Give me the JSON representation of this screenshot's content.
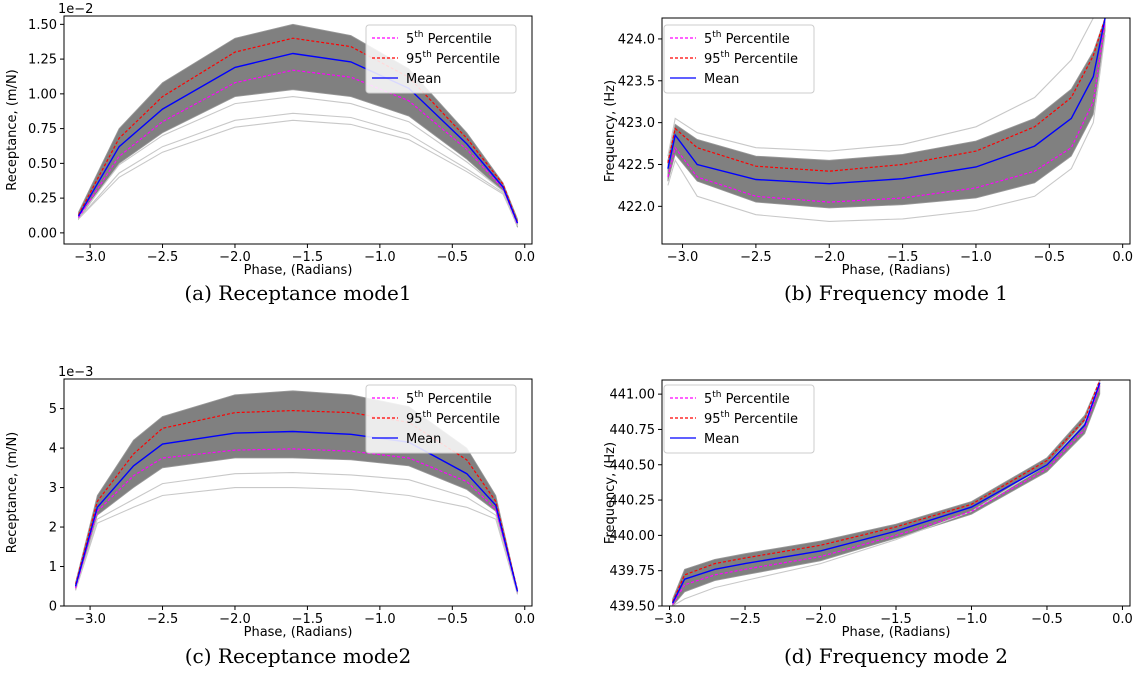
{
  "chart_data": [
    {
      "id": "a",
      "type": "line",
      "caption": "(a) Receptance mode1",
      "xlabel": "Phase, (Radians)",
      "ylabel": "Receptance, (m/N)",
      "offset_text": "1e−2",
      "xlim": [
        -3.18,
        0.05
      ],
      "ylim": [
        -0.08,
        1.56
      ],
      "xticks": [
        -3.0,
        -2.5,
        -2.0,
        -1.5,
        -1.0,
        -0.5,
        0.0
      ],
      "xtick_labels": [
        "−3.0",
        "−2.5",
        "−2.0",
        "−1.5",
        "−1.0",
        "−0.5",
        "0.0"
      ],
      "yticks": [
        0.0,
        0.25,
        0.5,
        0.75,
        1.0,
        1.25,
        1.5
      ],
      "ytick_labels": [
        "0.00",
        "0.25",
        "0.50",
        "0.75",
        "1.00",
        "1.25",
        "1.50"
      ],
      "band": {
        "x": [
          -3.08,
          -2.8,
          -2.5,
          -2.0,
          -1.6,
          -1.2,
          -0.8,
          -0.4,
          -0.15,
          -0.05
        ],
        "upper": [
          0.15,
          0.75,
          1.08,
          1.4,
          1.5,
          1.42,
          1.18,
          0.72,
          0.36,
          0.1
        ],
        "lower": [
          0.1,
          0.5,
          0.72,
          0.98,
          1.03,
          0.98,
          0.84,
          0.53,
          0.3,
          0.04
        ]
      },
      "outliers": [
        {
          "x": [
            -3.08,
            -2.8,
            -2.5,
            -2.0,
            -1.6,
            -1.2,
            -0.8,
            -0.4,
            -0.15,
            -0.05
          ],
          "y": [
            0.1,
            0.4,
            0.58,
            0.76,
            0.81,
            0.78,
            0.67,
            0.44,
            0.28,
            0.05
          ]
        },
        {
          "x": [
            -3.08,
            -2.8,
            -2.5,
            -2.0,
            -1.6,
            -1.2,
            -0.8,
            -0.4,
            -0.15,
            -0.05
          ],
          "y": [
            0.1,
            0.43,
            0.62,
            0.81,
            0.86,
            0.83,
            0.71,
            0.46,
            0.29,
            0.05
          ]
        },
        {
          "x": [
            -3.08,
            -2.8,
            -2.5,
            -2.0,
            -1.6,
            -1.2,
            -0.8,
            -0.4,
            -0.15,
            -0.05
          ],
          "y": [
            0.11,
            0.49,
            0.7,
            0.93,
            0.98,
            0.93,
            0.8,
            0.51,
            0.3,
            0.05
          ]
        }
      ],
      "series": [
        {
          "name": "5th Percentile",
          "color": "#ff00ff",
          "dash": "3,2",
          "x": [
            -3.08,
            -2.8,
            -2.5,
            -2.0,
            -1.6,
            -1.2,
            -0.8,
            -0.4,
            -0.15,
            -0.05
          ],
          "y": [
            0.11,
            0.55,
            0.8,
            1.08,
            1.17,
            1.12,
            0.95,
            0.6,
            0.32,
            0.06
          ]
        },
        {
          "name": "95th Percentile",
          "color": "#ff0000",
          "dash": "3,2",
          "x": [
            -3.08,
            -2.8,
            -2.5,
            -2.0,
            -1.6,
            -1.2,
            -0.8,
            -0.4,
            -0.15,
            -0.05
          ],
          "y": [
            0.13,
            0.68,
            0.98,
            1.3,
            1.4,
            1.34,
            1.12,
            0.68,
            0.35,
            0.08
          ]
        },
        {
          "name": "Mean",
          "color": "#0000ff",
          "dash": "",
          "x": [
            -3.08,
            -2.8,
            -2.5,
            -2.0,
            -1.6,
            -1.2,
            -0.8,
            -0.4,
            -0.15,
            -0.05
          ],
          "y": [
            0.12,
            0.62,
            0.89,
            1.19,
            1.29,
            1.23,
            1.04,
            0.64,
            0.33,
            0.07
          ]
        }
      ]
    },
    {
      "id": "b",
      "type": "line",
      "caption": "(b) Frequency mode 1",
      "xlabel": "Phase, (Radians)",
      "ylabel": "Frequency, (Hz)",
      "offset_text": "",
      "xlim": [
        -3.14,
        0.05
      ],
      "ylim": [
        421.55,
        424.25
      ],
      "xticks": [
        -3.0,
        -2.5,
        -2.0,
        -1.5,
        -1.0,
        -0.5,
        0.0
      ],
      "xtick_labels": [
        "−3.0",
        "−2.5",
        "−2.0",
        "−1.5",
        "−1.0",
        "−0.5",
        "0.0"
      ],
      "yticks": [
        422.0,
        422.5,
        423.0,
        423.5,
        424.0
      ],
      "ytick_labels": [
        "422.0",
        "422.5",
        "423.0",
        "423.5",
        "424.0"
      ],
      "band": {
        "x": [
          -3.1,
          -3.05,
          -2.9,
          -2.5,
          -2.0,
          -1.5,
          -1.0,
          -0.6,
          -0.35,
          -0.2,
          -0.12
        ],
        "upper": [
          422.55,
          422.98,
          422.8,
          422.6,
          422.55,
          422.62,
          422.78,
          423.05,
          423.4,
          423.85,
          424.25
        ],
        "lower": [
          422.3,
          422.62,
          422.3,
          422.05,
          421.98,
          422.02,
          422.1,
          422.28,
          422.6,
          423.1,
          424.1
        ]
      },
      "outliers": [
        {
          "x": [
            -3.1,
            -3.05,
            -2.9,
            -2.5,
            -2.0,
            -1.5,
            -1.0,
            -0.6,
            -0.35,
            -0.2,
            -0.12
          ],
          "y": [
            422.25,
            422.55,
            422.12,
            421.9,
            421.82,
            421.85,
            421.95,
            422.12,
            422.45,
            423.0,
            424.05
          ]
        },
        {
          "x": [
            -3.1,
            -3.05,
            -2.9,
            -2.5,
            -2.0,
            -1.5,
            -1.0,
            -0.6,
            -0.35,
            -0.2,
            -0.12
          ],
          "y": [
            422.6,
            423.05,
            422.88,
            422.7,
            422.66,
            422.74,
            422.95,
            423.3,
            423.75,
            424.25,
            424.25
          ]
        }
      ],
      "series": [
        {
          "name": "5th Percentile",
          "color": "#ff00ff",
          "dash": "3,2",
          "x": [
            -3.1,
            -3.05,
            -2.9,
            -2.5,
            -2.0,
            -1.5,
            -1.0,
            -0.6,
            -0.35,
            -0.2,
            -0.12
          ],
          "y": [
            422.35,
            422.7,
            422.35,
            422.12,
            422.05,
            422.1,
            422.22,
            422.42,
            422.7,
            423.25,
            424.2
          ]
        },
        {
          "name": "95th Percentile",
          "color": "#ff0000",
          "dash": "3,2",
          "x": [
            -3.1,
            -3.05,
            -2.9,
            -2.5,
            -2.0,
            -1.5,
            -1.0,
            -0.6,
            -0.35,
            -0.2,
            -0.12
          ],
          "y": [
            422.52,
            422.93,
            422.7,
            422.48,
            422.42,
            422.5,
            422.66,
            422.95,
            423.3,
            423.8,
            424.25
          ]
        },
        {
          "name": "Mean",
          "color": "#0000ff",
          "dash": "",
          "x": [
            -3.1,
            -3.05,
            -2.9,
            -2.5,
            -2.0,
            -1.5,
            -1.0,
            -0.6,
            -0.35,
            -0.2,
            -0.12
          ],
          "y": [
            422.45,
            422.85,
            422.5,
            422.32,
            422.27,
            422.33,
            422.47,
            422.72,
            423.05,
            423.55,
            424.25
          ]
        }
      ]
    },
    {
      "id": "c",
      "type": "line",
      "caption": "(c) Receptance mode2",
      "xlabel": "Phase, (Radians)",
      "ylabel": "Receptance, (m/N)",
      "offset_text": "1e−3",
      "xlim": [
        -3.18,
        0.05
      ],
      "ylim": [
        0.0,
        5.75
      ],
      "xticks": [
        -3.0,
        -2.5,
        -2.0,
        -1.5,
        -1.0,
        -0.5,
        0.0
      ],
      "xtick_labels": [
        "−3.0",
        "−2.5",
        "−2.0",
        "−1.5",
        "−1.0",
        "−0.5",
        "0.0"
      ],
      "yticks": [
        0,
        1,
        2,
        3,
        4,
        5
      ],
      "ytick_labels": [
        "0",
        "1",
        "2",
        "3",
        "4",
        "5"
      ],
      "band": {
        "x": [
          -3.1,
          -2.95,
          -2.7,
          -2.5,
          -2.0,
          -1.6,
          -1.2,
          -0.8,
          -0.4,
          -0.2,
          -0.05
        ],
        "upper": [
          0.6,
          2.8,
          4.2,
          4.8,
          5.35,
          5.45,
          5.35,
          5.05,
          4.0,
          2.8,
          0.4
        ],
        "lower": [
          0.4,
          2.3,
          3.0,
          3.5,
          3.75,
          3.75,
          3.7,
          3.55,
          2.95,
          2.4,
          0.3
        ]
      },
      "outliers": [
        {
          "x": [
            -3.1,
            -2.95,
            -2.7,
            -2.5,
            -2.0,
            -1.6,
            -1.2,
            -0.8,
            -0.4,
            -0.2,
            -0.05
          ],
          "y": [
            0.4,
            2.1,
            2.5,
            2.8,
            3.0,
            3.0,
            2.95,
            2.8,
            2.5,
            2.2,
            0.3
          ]
        },
        {
          "x": [
            -3.1,
            -2.95,
            -2.7,
            -2.5,
            -2.0,
            -1.6,
            -1.2,
            -0.8,
            -0.4,
            -0.2,
            -0.05
          ],
          "y": [
            0.4,
            2.2,
            2.7,
            3.1,
            3.35,
            3.38,
            3.32,
            3.2,
            2.75,
            2.3,
            0.3
          ]
        }
      ],
      "series": [
        {
          "name": "5th Percentile",
          "color": "#ff00ff",
          "dash": "3,2",
          "x": [
            -3.1,
            -2.95,
            -2.7,
            -2.5,
            -2.0,
            -1.6,
            -1.2,
            -0.8,
            -0.4,
            -0.2,
            -0.05
          ],
          "y": [
            0.45,
            2.4,
            3.3,
            3.75,
            3.95,
            3.98,
            3.92,
            3.75,
            3.15,
            2.45,
            0.35
          ]
        },
        {
          "name": "95th Percentile",
          "color": "#ff0000",
          "dash": "3,2",
          "x": [
            -3.1,
            -2.95,
            -2.7,
            -2.5,
            -2.0,
            -1.6,
            -1.2,
            -0.8,
            -0.4,
            -0.2,
            -0.05
          ],
          "y": [
            0.55,
            2.65,
            3.85,
            4.5,
            4.9,
            4.95,
            4.9,
            4.65,
            3.7,
            2.65,
            0.4
          ]
        },
        {
          "name": "Mean",
          "color": "#0000ff",
          "dash": "",
          "x": [
            -3.1,
            -2.95,
            -2.7,
            -2.5,
            -2.0,
            -1.6,
            -1.2,
            -0.8,
            -0.4,
            -0.2,
            -0.05
          ],
          "y": [
            0.5,
            2.5,
            3.55,
            4.1,
            4.38,
            4.42,
            4.35,
            4.15,
            3.35,
            2.55,
            0.37
          ]
        }
      ]
    },
    {
      "id": "d",
      "type": "line",
      "caption": "(d) Frequency mode 2",
      "xlabel": "Phase, (Radians)",
      "ylabel": "Frequency, (Hz)",
      "offset_text": "",
      "xlim": [
        -3.05,
        0.05
      ],
      "ylim": [
        439.5,
        441.1
      ],
      "xticks": [
        -3.0,
        -2.5,
        -2.0,
        -1.5,
        -1.0,
        -0.5,
        0.0
      ],
      "xtick_labels": [
        "−3.0",
        "−2.5",
        "−2.0",
        "−1.5",
        "−1.0",
        "−0.5",
        "0.0"
      ],
      "yticks": [
        439.5,
        439.75,
        440.0,
        440.25,
        440.5,
        440.75,
        441.0
      ],
      "ytick_labels": [
        "439.50",
        "439.75",
        "440.00",
        "440.25",
        "440.50",
        "440.75",
        "441.00"
      ],
      "band": {
        "x": [
          -2.98,
          -2.9,
          -2.7,
          -2.5,
          -2.0,
          -1.5,
          -1.0,
          -0.5,
          -0.25,
          -0.15
        ],
        "upper": [
          439.55,
          439.76,
          439.83,
          439.87,
          439.96,
          440.08,
          440.24,
          440.55,
          440.85,
          441.1
        ],
        "lower": [
          439.5,
          439.6,
          439.68,
          439.72,
          439.82,
          439.98,
          440.15,
          440.45,
          440.72,
          441.0
        ]
      },
      "outliers": [
        {
          "x": [
            -2.98,
            -2.9,
            -2.7,
            -2.5,
            -2.0,
            -1.5,
            -1.0,
            -0.5,
            -0.25,
            -0.15
          ],
          "y": [
            439.5,
            439.55,
            439.63,
            439.68,
            439.8,
            439.97,
            440.17,
            440.5,
            440.8,
            441.1
          ]
        }
      ],
      "series": [
        {
          "name": "5th Percentile",
          "color": "#ff00ff",
          "dash": "3,2",
          "x": [
            -2.98,
            -2.9,
            -2.7,
            -2.5,
            -2.0,
            -1.5,
            -1.0,
            -0.5,
            -0.25,
            -0.15
          ],
          "y": [
            439.51,
            439.65,
            439.72,
            439.76,
            439.85,
            440.0,
            440.17,
            440.47,
            440.75,
            441.06
          ]
        },
        {
          "name": "95th Percentile",
          "color": "#ff0000",
          "dash": "3,2",
          "x": [
            -2.98,
            -2.9,
            -2.7,
            -2.5,
            -2.0,
            -1.5,
            -1.0,
            -0.5,
            -0.25,
            -0.15
          ],
          "y": [
            439.53,
            439.72,
            439.8,
            439.84,
            439.93,
            440.06,
            440.22,
            440.53,
            440.82,
            441.1
          ]
        },
        {
          "name": "Mean",
          "color": "#0000ff",
          "dash": "",
          "x": [
            -2.98,
            -2.9,
            -2.7,
            -2.5,
            -2.0,
            -1.5,
            -1.0,
            -0.5,
            -0.25,
            -0.15
          ],
          "y": [
            439.52,
            439.69,
            439.76,
            439.8,
            439.89,
            440.03,
            440.2,
            440.5,
            440.78,
            441.08
          ]
        }
      ]
    }
  ],
  "legend": [
    {
      "base": "5",
      "sup": "th",
      "rest": " Percentile",
      "color": "#ff00ff",
      "dash": "3,2"
    },
    {
      "base": "95",
      "sup": "th",
      "rest": " Percentile",
      "color": "#ff0000",
      "dash": "3,2"
    },
    {
      "base": "Mean",
      "sup": "",
      "rest": "",
      "color": "#0000ff",
      "dash": ""
    }
  ],
  "colors": {
    "band": "#808080",
    "outlier": "#c8c8c8"
  }
}
